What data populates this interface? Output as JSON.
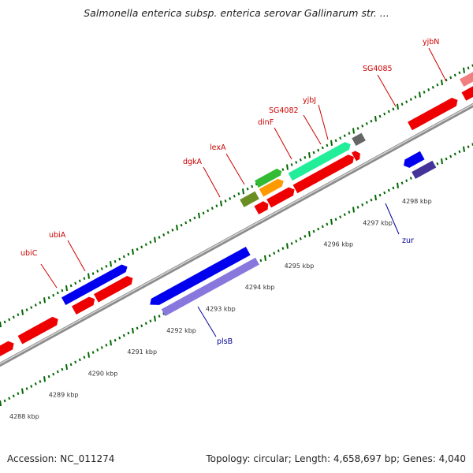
{
  "title": "Salmonella enterica subsp. enterica serovar Gallinarum str. ...",
  "footer": {
    "accession": "Accession: NC_011274",
    "summary": "Topology: circular; Length: 4,658,697 bp; Genes: 4,040"
  },
  "scale": {
    "tick_labels": [
      "4288 kbp",
      "4289 kbp",
      "4290 kbp",
      "4291 kbp",
      "4292 kbp",
      "4293 kbp",
      "4294 kbp",
      "4295 kbp",
      "4296 kbp",
      "4297 kbp",
      "4298 kbp"
    ]
  },
  "gene_labels": {
    "top": [
      "ubiC",
      "ubiA",
      "dgkA",
      "lexA",
      "dinF",
      "SG4082",
      "yjbJ",
      "SG4085",
      "yjbN"
    ],
    "bottom": [
      "plsB",
      "zur"
    ]
  },
  "colors": {
    "cds_forward": "#ff0000",
    "cds_reverse": "#0000ee",
    "backbone": "#999999",
    "tick": "#006600",
    "label_top": "#cc0000",
    "label_bottom": "#000099"
  }
}
